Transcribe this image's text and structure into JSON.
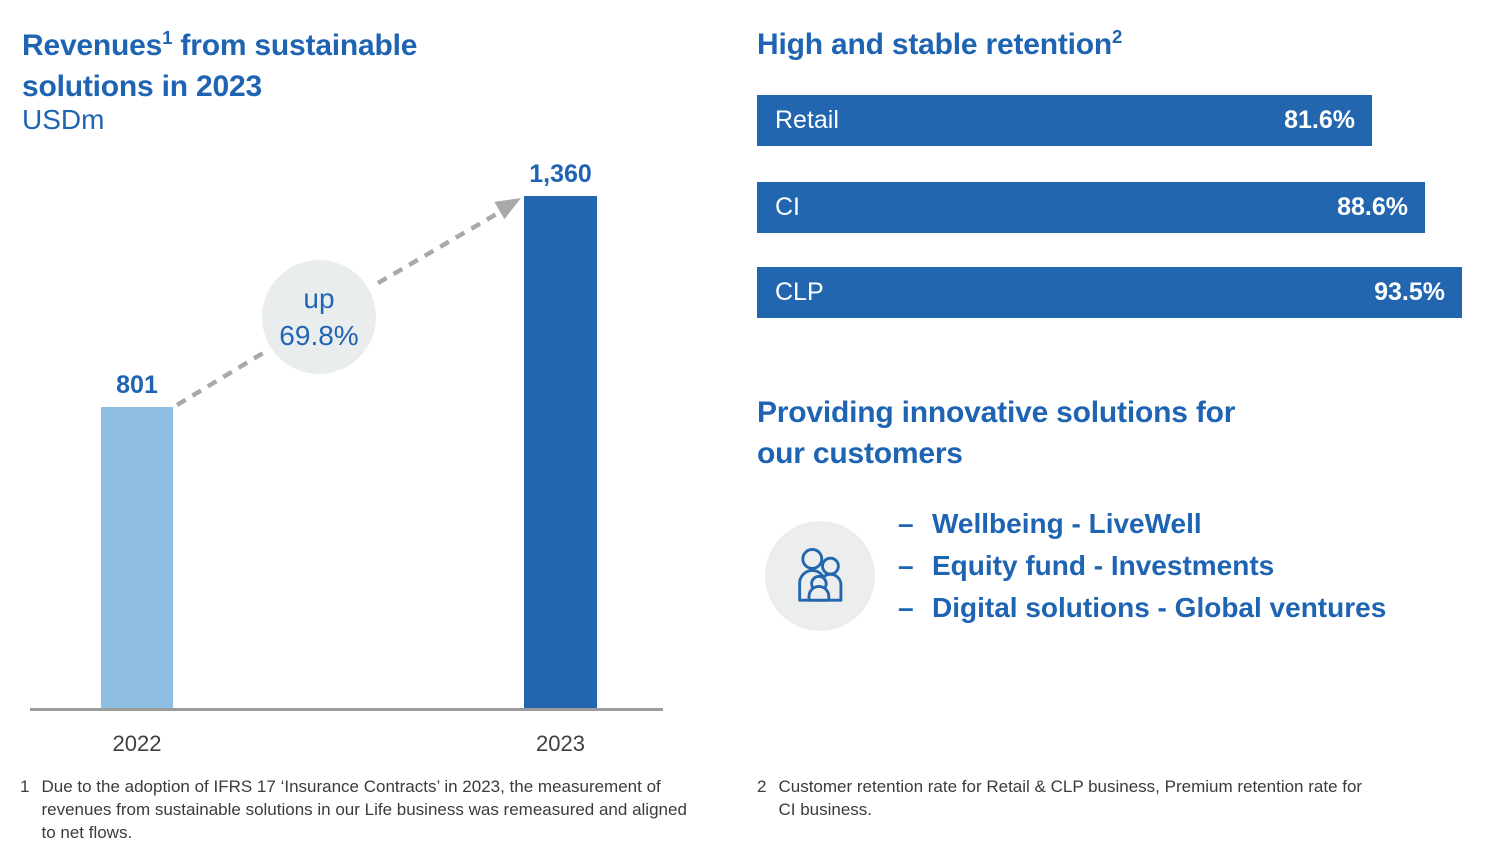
{
  "colors": {
    "heading_blue": "#1E64B2",
    "bar_dark_blue": "#2166AE",
    "bar_light_blue": "#8FBEE3",
    "annotation_circle_bg": "#E9EDED",
    "arrow_gray": "#A9A9A9",
    "baseline_gray": "#9B9B9B",
    "footnote_gray": "#3B3B3B"
  },
  "left_chart": {
    "title_main": "Revenues",
    "title_sup": "1",
    "title_rest": " from sustainable solutions in 2023",
    "unit": "USDm",
    "bars": [
      {
        "category": "2022",
        "value": 801,
        "label": "801"
      },
      {
        "category": "2023",
        "value": 1360,
        "label": "1,360"
      }
    ],
    "annotation": {
      "line1": "up",
      "line2": "69.8%"
    },
    "footnote": {
      "marker": "1",
      "text": "Due to the adoption of IFRS 17 ‘Insurance Contracts’ in 2023, the measurement of revenues from sustainable solutions in our Life business was remeasured and aligned to net flows."
    }
  },
  "retention": {
    "title_main": "High and stable retention",
    "title_sup": "2",
    "bars": [
      {
        "label": "Retail",
        "value": 81.6,
        "display": "81.6%"
      },
      {
        "label": "CI",
        "value": 88.6,
        "display": "88.6%"
      },
      {
        "label": "CLP",
        "value": 93.5,
        "display": "93.5%"
      }
    ],
    "footnote": {
      "marker": "2",
      "text": "Customer retention rate for Retail & CLP business, Premium retention rate for CI business."
    }
  },
  "solutions": {
    "heading": "Providing innovative solutions for our customers",
    "icon": "family-icon",
    "items": [
      {
        "bullet": "–",
        "text": "Wellbeing - LiveWell"
      },
      {
        "bullet": "–",
        "text": "Equity fund - Investments"
      },
      {
        "bullet": "–",
        "text": "Digital solutions - Global ventures"
      }
    ]
  },
  "chart_data": [
    {
      "type": "bar",
      "title": "Revenues from sustainable solutions in 2023",
      "subtitle_unit": "USDm",
      "categories": [
        "2022",
        "2023"
      ],
      "values": [
        801,
        1360
      ],
      "value_labels": [
        "801",
        "1,360"
      ],
      "annotation": "up 69.8%",
      "bar_colors": [
        "#8FBEE3",
        "#2166AE"
      ],
      "ylim": [
        0,
        1360
      ],
      "grid": false,
      "legend": false
    },
    {
      "type": "bar",
      "orientation": "horizontal",
      "title": "High and stable retention",
      "categories": [
        "Retail",
        "CI",
        "CLP"
      ],
      "values": [
        81.6,
        88.6,
        93.5
      ],
      "value_labels": [
        "81.6%",
        "88.6%",
        "93.5%"
      ],
      "xlim": [
        0,
        100
      ],
      "bar_color": "#2166AE",
      "grid": false,
      "legend": false
    }
  ]
}
